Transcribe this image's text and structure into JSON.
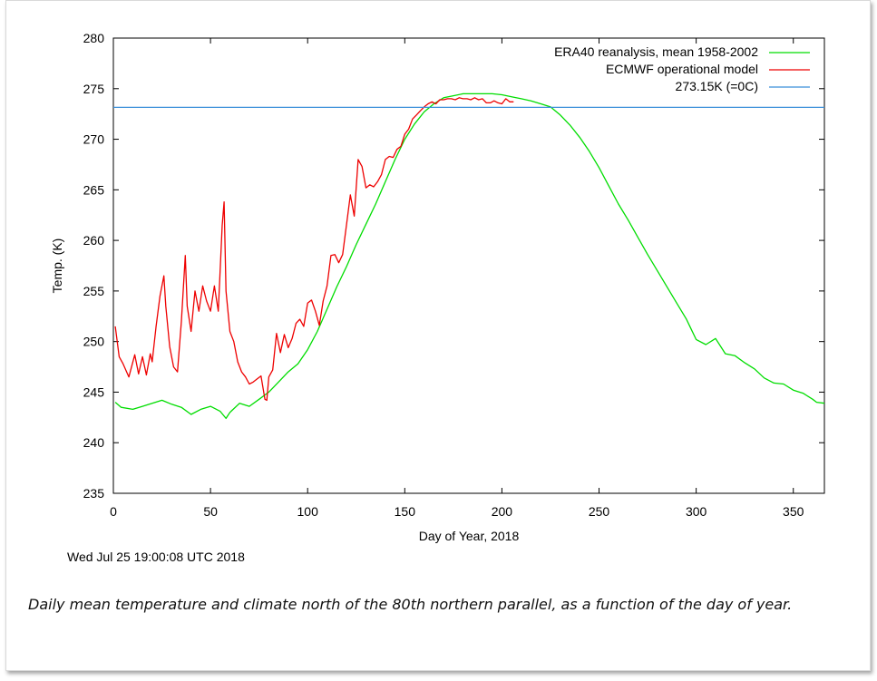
{
  "caption": "Daily mean temperature and climate north of the 80th northern parallel, as a function of the day of year.",
  "timestamp": "Wed Jul 25 19:00:08 UTC 2018",
  "chart_data": {
    "type": "line",
    "xlabel": "Day of Year, 2018",
    "ylabel": "Temp. (K)",
    "xlim": [
      0,
      366
    ],
    "ylim": [
      235,
      280
    ],
    "xticks": [
      0,
      50,
      100,
      150,
      200,
      250,
      300,
      350
    ],
    "yticks": [
      235,
      240,
      245,
      250,
      255,
      260,
      265,
      270,
      275,
      280
    ],
    "legend_position": "top-right",
    "series": [
      {
        "name": "ERA40 reanalysis, mean 1958-2002",
        "color": "#00dd00",
        "x": [
          1,
          4,
          10,
          15,
          20,
          25,
          30,
          35,
          40,
          45,
          50,
          55,
          58,
          60,
          65,
          70,
          75,
          80,
          85,
          90,
          95,
          100,
          105,
          110,
          115,
          120,
          125,
          130,
          135,
          140,
          145,
          150,
          155,
          160,
          165,
          170,
          175,
          180,
          185,
          190,
          195,
          200,
          205,
          210,
          215,
          220,
          225,
          230,
          235,
          240,
          245,
          250,
          255,
          260,
          265,
          270,
          275,
          280,
          285,
          290,
          295,
          300,
          305,
          310,
          315,
          320,
          325,
          330,
          335,
          340,
          345,
          350,
          355,
          360,
          362,
          366
        ],
        "y": [
          244.0,
          243.5,
          243.3,
          243.6,
          243.9,
          244.2,
          243.8,
          243.5,
          242.8,
          243.3,
          243.6,
          243.1,
          242.4,
          243.0,
          243.9,
          243.6,
          244.3,
          245.0,
          246.0,
          247.0,
          247.8,
          249.2,
          251.0,
          253.2,
          255.4,
          257.4,
          259.6,
          261.6,
          263.6,
          265.8,
          268.0,
          270.0,
          271.5,
          272.7,
          273.5,
          274.1,
          274.3,
          274.5,
          274.5,
          274.5,
          274.5,
          274.4,
          274.2,
          274.0,
          273.8,
          273.5,
          273.2,
          272.4,
          271.4,
          270.2,
          268.8,
          267.2,
          265.4,
          263.6,
          262.0,
          260.3,
          258.6,
          257.0,
          255.4,
          253.8,
          252.2,
          250.2,
          249.7,
          250.3,
          248.8,
          248.6,
          247.9,
          247.3,
          246.4,
          245.9,
          245.8,
          245.2,
          244.9,
          244.3,
          244.0,
          243.9
        ]
      },
      {
        "name": "ECMWF operational model",
        "color": "#ee0000",
        "x": [
          1,
          3,
          5,
          8,
          11,
          13,
          15,
          17,
          19,
          20,
          22,
          24,
          26,
          27,
          29,
          31,
          33,
          35,
          37,
          38,
          40,
          42,
          44,
          46,
          48,
          50,
          52,
          54,
          56,
          57,
          58,
          60,
          62,
          64,
          66,
          68,
          70,
          72,
          74,
          76,
          78,
          79,
          80,
          82,
          84,
          86,
          88,
          90,
          92,
          94,
          96,
          98,
          100,
          102,
          104,
          106,
          108,
          110,
          112,
          114,
          116,
          118,
          120,
          122,
          124,
          126,
          128,
          130,
          132,
          134,
          136,
          138,
          140,
          142,
          144,
          146,
          148,
          150,
          152,
          154,
          156,
          158,
          160,
          162,
          164,
          166,
          168,
          170,
          172,
          174,
          176,
          178,
          180,
          182,
          184,
          186,
          188,
          190,
          192,
          194,
          196,
          198,
          200,
          202,
          204,
          206
        ],
        "y": [
          251.5,
          248.5,
          247.8,
          246.5,
          248.7,
          246.8,
          248.5,
          246.7,
          248.8,
          248.0,
          251.5,
          254.5,
          256.5,
          253.5,
          249.5,
          247.5,
          247.0,
          252.0,
          258.5,
          253.5,
          251.0,
          255.0,
          253.0,
          255.5,
          254.0,
          253.0,
          255.5,
          253.0,
          261.5,
          263.8,
          255.0,
          251.0,
          250.0,
          248.0,
          247.0,
          246.5,
          245.8,
          246.0,
          246.3,
          246.6,
          244.3,
          244.2,
          246.5,
          247.2,
          250.8,
          248.9,
          250.7,
          249.4,
          250.3,
          251.8,
          252.2,
          251.5,
          253.8,
          254.1,
          253.0,
          251.6,
          254.0,
          255.5,
          258.5,
          258.6,
          257.8,
          258.6,
          261.5,
          264.5,
          262.4,
          268.0,
          267.3,
          265.2,
          265.5,
          265.3,
          265.8,
          266.5,
          268.0,
          268.3,
          268.2,
          269.0,
          269.3,
          270.5,
          271.0,
          272.0,
          272.4,
          272.8,
          273.2,
          273.5,
          273.7,
          273.5,
          273.9,
          273.9,
          274.0,
          274.0,
          273.9,
          274.1,
          274.0,
          274.0,
          273.9,
          274.1,
          273.9,
          274.0,
          273.6,
          273.6,
          273.8,
          273.6,
          273.5,
          274.0,
          273.7,
          273.7
        ]
      },
      {
        "name": "273.15K (=0C)",
        "color": "#3a8fd9",
        "x": [
          0,
          366
        ],
        "y": [
          273.15,
          273.15
        ]
      }
    ]
  }
}
